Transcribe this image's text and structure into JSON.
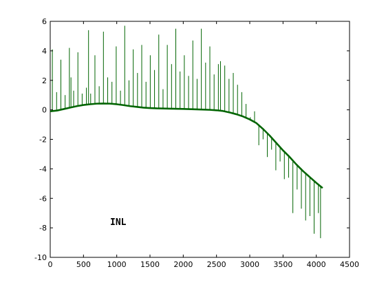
{
  "chart_data": {
    "type": "line",
    "title": "",
    "xlabel": "",
    "ylabel": "",
    "xlim": [
      0,
      4500
    ],
    "ylim": [
      -10,
      6
    ],
    "x_ticks": [
      0,
      500,
      1000,
      1500,
      2000,
      2500,
      3000,
      3500,
      4000,
      4500
    ],
    "y_ticks": [
      -10,
      -8,
      -6,
      -4,
      -2,
      0,
      2,
      4,
      6
    ],
    "grid": false,
    "legend": "none",
    "annotation": {
      "text": "INL",
      "x": 900,
      "y": -7.8
    },
    "series": [
      {
        "color": "#006400",
        "baseline": [
          [
            0,
            -0.1
          ],
          [
            100,
            -0.05
          ],
          [
            200,
            0.05
          ],
          [
            300,
            0.15
          ],
          [
            400,
            0.25
          ],
          [
            500,
            0.33
          ],
          [
            600,
            0.38
          ],
          [
            700,
            0.42
          ],
          [
            800,
            0.43
          ],
          [
            900,
            0.42
          ],
          [
            1000,
            0.38
          ],
          [
            1100,
            0.32
          ],
          [
            1200,
            0.25
          ],
          [
            1300,
            0.2
          ],
          [
            1400,
            0.15
          ],
          [
            1500,
            0.12
          ],
          [
            1600,
            0.1
          ],
          [
            1800,
            0.08
          ],
          [
            2000,
            0.06
          ],
          [
            2200,
            0.03
          ],
          [
            2400,
            0.0
          ],
          [
            2500,
            -0.03
          ],
          [
            2600,
            -0.08
          ],
          [
            2700,
            -0.18
          ],
          [
            2800,
            -0.3
          ],
          [
            2900,
            -0.45
          ],
          [
            3000,
            -0.65
          ],
          [
            3100,
            -0.9
          ],
          [
            3200,
            -1.3
          ],
          [
            3300,
            -1.75
          ],
          [
            3400,
            -2.25
          ],
          [
            3500,
            -2.75
          ],
          [
            3600,
            -3.2
          ],
          [
            3700,
            -3.7
          ],
          [
            3800,
            -4.15
          ],
          [
            3900,
            -4.55
          ],
          [
            4000,
            -4.95
          ],
          [
            4095,
            -5.3
          ]
        ],
        "spikes": [
          [
            32,
            4.1
          ],
          [
            96,
            1.2
          ],
          [
            160,
            3.4
          ],
          [
            224,
            1.0
          ],
          [
            288,
            4.2
          ],
          [
            312,
            2.2
          ],
          [
            352,
            1.3
          ],
          [
            416,
            3.9
          ],
          [
            480,
            1.1
          ],
          [
            544,
            1.5
          ],
          [
            576,
            5.4
          ],
          [
            608,
            1.1
          ],
          [
            672,
            3.7
          ],
          [
            736,
            1.6
          ],
          [
            800,
            5.3
          ],
          [
            864,
            2.2
          ],
          [
            928,
            1.9
          ],
          [
            992,
            4.3
          ],
          [
            1056,
            1.3
          ],
          [
            1120,
            5.7
          ],
          [
            1184,
            2.0
          ],
          [
            1248,
            4.1
          ],
          [
            1312,
            2.5
          ],
          [
            1376,
            4.4
          ],
          [
            1440,
            1.9
          ],
          [
            1504,
            3.7
          ],
          [
            1568,
            2.7
          ],
          [
            1632,
            5.1
          ],
          [
            1696,
            1.4
          ],
          [
            1760,
            4.4
          ],
          [
            1824,
            3.1
          ],
          [
            1888,
            5.5
          ],
          [
            1952,
            2.6
          ],
          [
            2016,
            3.7
          ],
          [
            2080,
            2.3
          ],
          [
            2144,
            4.7
          ],
          [
            2208,
            2.1
          ],
          [
            2272,
            5.5
          ],
          [
            2336,
            3.2
          ],
          [
            2400,
            4.3
          ],
          [
            2464,
            2.4
          ],
          [
            2528,
            3.1
          ],
          [
            2560,
            3.3
          ],
          [
            2624,
            3.0
          ],
          [
            2688,
            2.1
          ],
          [
            2752,
            2.5
          ],
          [
            2816,
            1.7
          ],
          [
            2880,
            1.2
          ],
          [
            2944,
            0.4
          ],
          [
            3008,
            -0.5
          ],
          [
            3072,
            -0.1
          ],
          [
            3136,
            -2.4
          ],
          [
            3200,
            -2.0
          ],
          [
            3264,
            -3.2
          ],
          [
            3328,
            -2.7
          ],
          [
            3392,
            -4.1
          ],
          [
            3456,
            -3.5
          ],
          [
            3520,
            -4.7
          ],
          [
            3584,
            -4.6
          ],
          [
            3648,
            -7.0
          ],
          [
            3712,
            -5.4
          ],
          [
            3776,
            -6.7
          ],
          [
            3840,
            -7.5
          ],
          [
            3904,
            -7.2
          ],
          [
            3968,
            -8.4
          ],
          [
            4032,
            -7.0
          ],
          [
            4064,
            -8.7
          ]
        ]
      }
    ]
  }
}
